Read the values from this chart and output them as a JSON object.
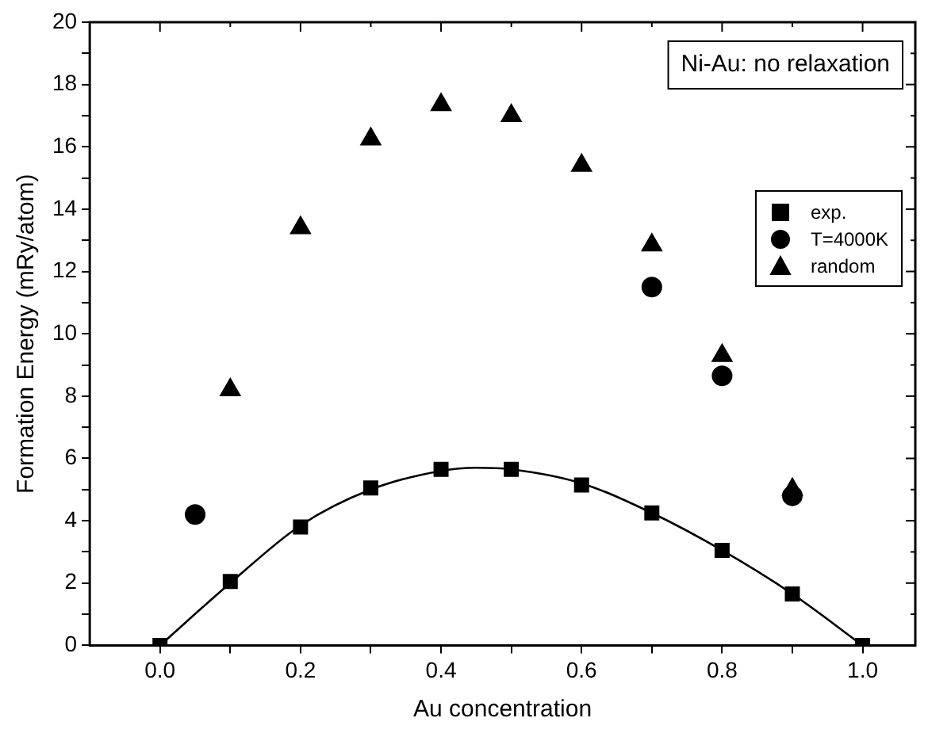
{
  "chart_data": {
    "type": "scatter",
    "xlabel": "Au concentration",
    "ylabel": "Formation Energy (mRy/atom)",
    "annotations": [
      "Ni-Au: no relaxation"
    ],
    "xlim": [
      -0.1,
      1.075
    ],
    "xticks": [
      {
        "value": 0,
        "label": "0.0"
      },
      {
        "value": 0.1,
        "label": null
      },
      0.2,
      {
        "value": 0.3,
        "label": null
      },
      0.4,
      {
        "value": 0.5,
        "label": null
      },
      0.6,
      {
        "value": 0.7,
        "label": null
      },
      0.8,
      {
        "value": 0.9,
        "label": null
      },
      {
        "value": 1,
        "label": "1.0"
      }
    ],
    "ylim": [
      0,
      20
    ],
    "yticks": [
      0,
      {
        "value": 1,
        "label": null
      },
      2,
      {
        "value": 3,
        "label": null
      },
      4,
      {
        "value": 5,
        "label": null
      },
      6,
      {
        "value": 7,
        "label": null
      },
      8,
      {
        "value": 9,
        "label": null
      },
      10,
      {
        "value": 11,
        "label": null
      },
      12,
      {
        "value": 13,
        "label": null
      },
      14,
      {
        "value": 15,
        "label": null
      },
      16,
      {
        "value": 17,
        "label": null
      },
      18,
      {
        "value": 19,
        "label": null
      },
      20
    ],
    "grid": false,
    "legend": "right",
    "series": [
      {
        "name": "exp.",
        "color": "#000000",
        "marker": "square",
        "x": [
          0,
          0.1,
          0.2,
          0.3,
          0.4,
          0.5,
          0.6,
          0.7,
          0.8,
          0.9,
          1.0
        ],
        "values": [
          0,
          2.05,
          3.8,
          5.05,
          5.65,
          5.65,
          5.15,
          4.25,
          3.05,
          1.65,
          0
        ]
      },
      {
        "name": "T=4000K",
        "color": "#000000",
        "marker": "circle",
        "x": [
          0.05,
          0.7,
          0.8,
          0.9
        ],
        "values": [
          4.2,
          11.5,
          8.65,
          4.8
        ]
      },
      {
        "name": "random",
        "color": "#000000",
        "marker": "triangle",
        "x": [
          0.1,
          0.2,
          0.3,
          0.4,
          0.5,
          0.6,
          0.7,
          0.8,
          0.9
        ],
        "values": [
          8.2,
          13.4,
          16.25,
          17.35,
          17.0,
          15.4,
          12.85,
          9.3,
          5.0
        ]
      },
      {
        "type": "line",
        "color": "#000000",
        "marker": "none",
        "x": [
          0,
          0.1,
          0.2,
          0.3,
          0.4,
          0.45,
          0.5,
          0.6,
          0.7,
          0.8,
          0.9,
          1.0
        ],
        "values": [
          0,
          2.0,
          3.85,
          5.0,
          5.6,
          5.7,
          5.65,
          5.2,
          4.25,
          3.05,
          1.65,
          0
        ]
      }
    ]
  }
}
